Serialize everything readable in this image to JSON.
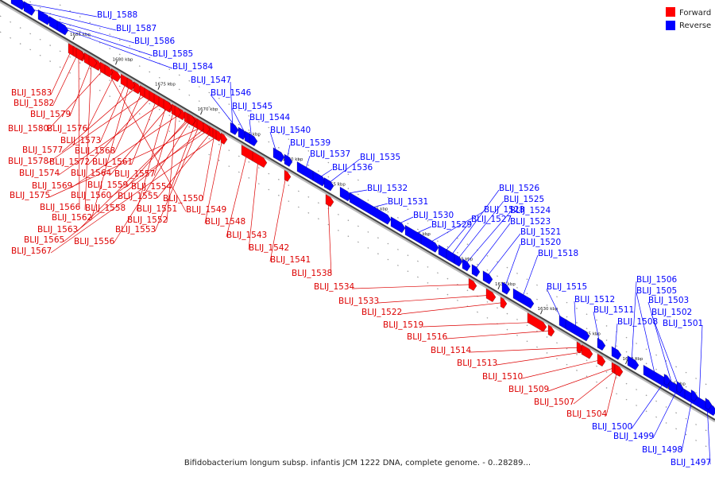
{
  "caption": "Bifidobacterium longum subsp. infantis JCM 1222 DNA, complete genome. - 0..28289...",
  "legend": [
    {
      "label": "Forward",
      "color": "#ff0000"
    },
    {
      "label": "Reverse",
      "color": "#0000ff"
    }
  ],
  "kbp_ticks": [
    "1685 kbp",
    "1680 kbp",
    "1675 kbp",
    "1670 kbp",
    "1665 kbp",
    "1660 kbp",
    "1655 kbp",
    "1650 kbp",
    "1645 kbp",
    "1640 kbp",
    "1635 kbp",
    "1630 kbp",
    "1625 kbp",
    "1620 kbp",
    "1615 kbp"
  ],
  "forward_genes": [
    "BLIJ_1583",
    "BLIJ_1582",
    "BLIJ_1579",
    "BLIJ_1580",
    "BLIJ_1576",
    "BLIJ_1573",
    "BLIJ_1577",
    "BLIJ_1568",
    "BLIJ_1578",
    "BLIJ_1572",
    "BLIJ_1561",
    "BLIJ_1574",
    "BLIJ_1564",
    "BLIJ_1557",
    "BLIJ_1569",
    "BLIJ_1559",
    "BLIJ_1554",
    "BLIJ_1575",
    "BLIJ_1560",
    "BLIJ_1555",
    "BLIJ_1550",
    "BLIJ_1566",
    "BLIJ_1558",
    "BLIJ_1549",
    "BLIJ_1562",
    "BLIJ_1551",
    "BLIJ_1552",
    "BLIJ_1563",
    "BLIJ_1553",
    "BLIJ_1565",
    "BLIJ_1556",
    "BLIJ_1567",
    "BLIJ_1548",
    "BLIJ_1543",
    "BLIJ_1542",
    "BLIJ_1541",
    "BLIJ_1538",
    "BLIJ_1534",
    "BLIJ_1533",
    "BLIJ_1522",
    "BLIJ_1519",
    "BLIJ_1516",
    "BLIJ_1514",
    "BLIJ_1513",
    "BLIJ_1510",
    "BLIJ_1509",
    "BLIJ_1507",
    "BLIJ_1504"
  ],
  "reverse_genes": [
    "BLIJ_1588",
    "BLIJ_1587",
    "BLIJ_1586",
    "BLIJ_1585",
    "BLIJ_1584",
    "BLIJ_1547",
    "BLIJ_1546",
    "BLIJ_1545",
    "BLIJ_1544",
    "BLIJ_1540",
    "BLIJ_1539",
    "BLIJ_1537",
    "BLIJ_1536",
    "BLIJ_1535",
    "BLIJ_1532",
    "BLIJ_1531",
    "BLIJ_1530",
    "BLIJ_1529",
    "BLIJ_1528",
    "BLIJ_1527",
    "BLIJ_1526",
    "BLIJ_1525",
    "BLIJ_1524",
    "BLIJ_1523",
    "BLIJ_1521",
    "BLIJ_1520",
    "BLIJ_1518",
    "BLIJ_1515",
    "BLIJ_1512",
    "BLIJ_1511",
    "BLIJ_1508",
    "BLIJ_1506",
    "BLIJ_1505",
    "BLIJ_1503",
    "BLIJ_1502",
    "BLIJ_1501",
    "BLIJ_1500",
    "BLIJ_1499",
    "BLIJ_1498",
    "BLIJ_1497"
  ]
}
